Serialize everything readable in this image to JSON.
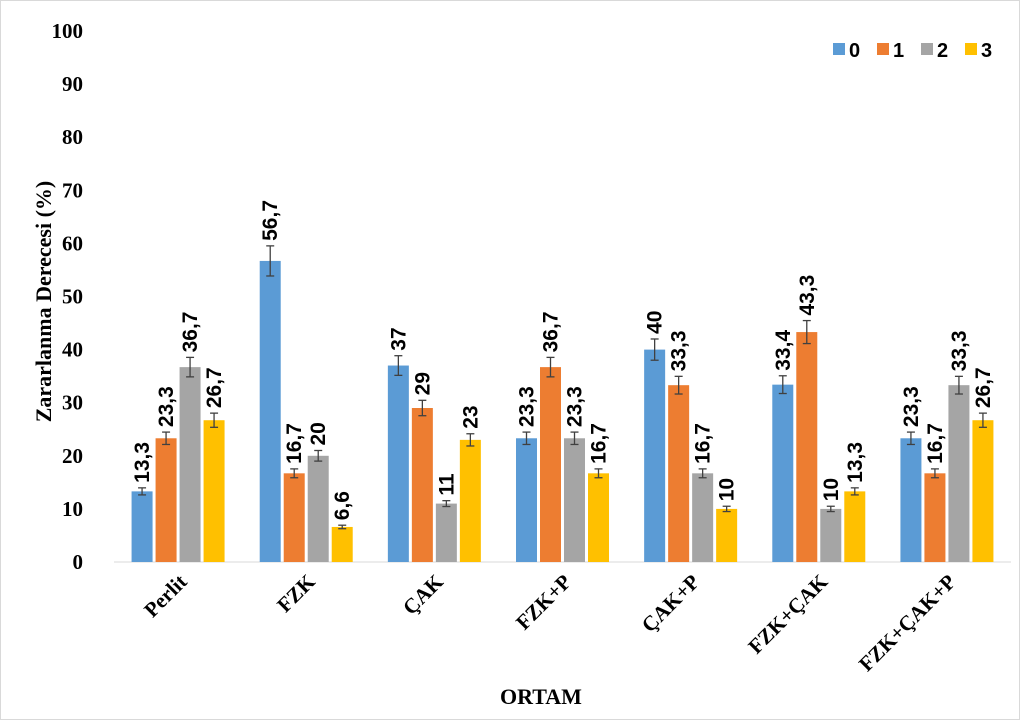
{
  "chart_data": {
    "type": "bar",
    "title": "",
    "xlabel": "ORTAM",
    "ylabel": "Zararlanma Derecesi (%)",
    "ylim": [
      0,
      100
    ],
    "yticks": [
      0,
      10,
      20,
      30,
      40,
      50,
      60,
      70,
      80,
      90,
      100
    ],
    "grid": false,
    "legend_position": "top-right",
    "categories": [
      "Perlit",
      "FZK",
      "ÇAK",
      "FZK+P",
      "ÇAK+P",
      "FZK+ÇAK",
      "FZK+ÇAK+P"
    ],
    "series": [
      {
        "name": "0",
        "color": "#5B9BD5",
        "values": [
          13.3,
          56.7,
          37,
          23.3,
          40,
          33.4,
          23.3
        ],
        "labels": [
          "13,3",
          "56,7",
          "37",
          "23,3",
          "40",
          "33,4",
          "23,3"
        ]
      },
      {
        "name": "1",
        "color": "#ED7D31",
        "values": [
          23.3,
          16.7,
          29,
          36.7,
          33.3,
          43.3,
          16.7
        ],
        "labels": [
          "23,3",
          "16,7",
          "29",
          "36,7",
          "33,3",
          "43,3",
          "16,7"
        ]
      },
      {
        "name": "2",
        "color": "#A5A5A5",
        "values": [
          36.7,
          20,
          11,
          23.3,
          16.7,
          10,
          33.3
        ],
        "labels": [
          "36,7",
          "20",
          "11",
          "23,3",
          "16,7",
          "10",
          "33,3"
        ]
      },
      {
        "name": "3",
        "color": "#FFC000",
        "values": [
          26.7,
          6.6,
          23,
          16.7,
          10,
          13.3,
          26.7
        ],
        "labels": [
          "26,7",
          "6,6",
          "23",
          "16,7",
          "10",
          "13,3",
          "26,7"
        ]
      }
    ],
    "error_bars": "5% of value"
  }
}
